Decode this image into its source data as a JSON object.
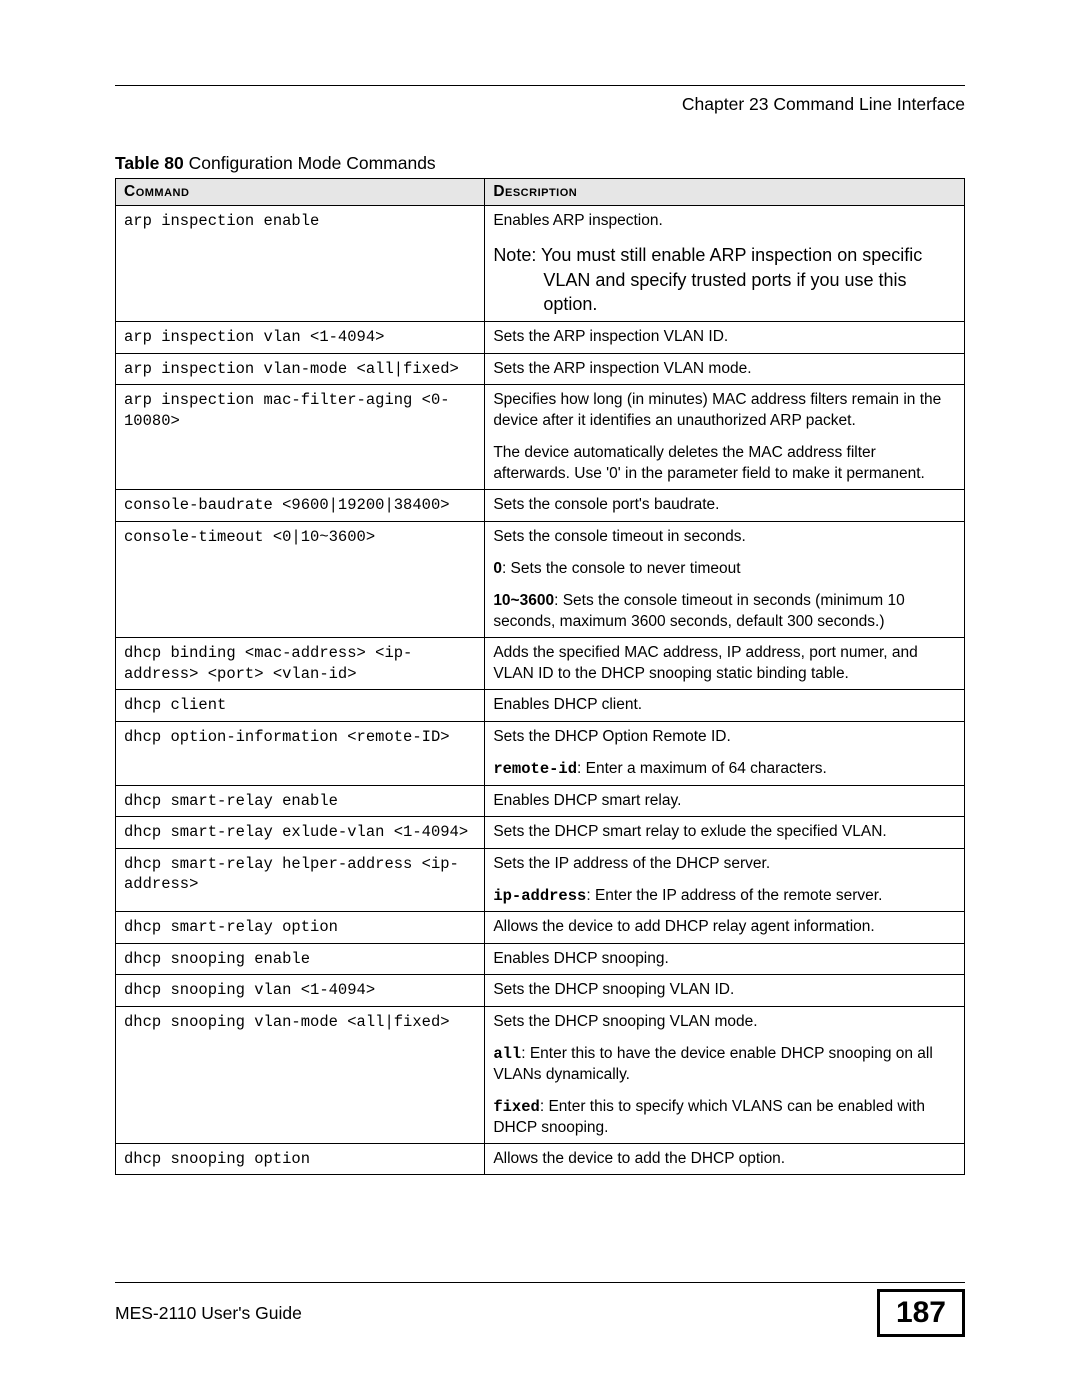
{
  "chapter_line": "Chapter 23 Command Line Interface",
  "table_caption_bold": "Table 80",
  "table_caption_rest": "   Configuration Mode Commands",
  "headers": {
    "command": "Command",
    "description": "Description"
  },
  "rows": [
    {
      "cmd": "arp inspection enable",
      "desc": [
        {
          "text": "Enables ARP inspection."
        },
        {
          "note": true,
          "text": "Note: You must still enable ARP inspection on specific VLAN and specify trusted ports if you use this option."
        }
      ]
    },
    {
      "cmd": "arp inspection vlan <1-4094>",
      "desc": [
        {
          "text": "Sets the ARP inspection VLAN ID."
        }
      ]
    },
    {
      "cmd": "arp inspection vlan-mode <all|fixed>",
      "desc": [
        {
          "text": "Sets the ARP inspection VLAN mode."
        }
      ]
    },
    {
      "cmd": "arp inspection mac-filter-aging <0-10080>",
      "desc": [
        {
          "text": "Specifies how long (in minutes) MAC address filters remain in the device after it identifies an unauthorized ARP packet."
        },
        {
          "text": "The device automatically deletes the MAC address filter afterwards. Use '0' in the parameter field to make it permanent."
        }
      ]
    },
    {
      "cmd": "console-baudrate <9600|19200|38400>",
      "desc": [
        {
          "text": "Sets the console port's baudrate."
        }
      ]
    },
    {
      "cmd": "console-timeout <0|10~3600>",
      "desc": [
        {
          "text": "Sets the console timeout in seconds."
        },
        {
          "bold_lead": "0",
          "text": ": Sets the console to never timeout"
        },
        {
          "bold_lead": "10~3600",
          "text": ": Sets the console timeout in seconds (minimum 10 seconds, maximum 3600 seconds, default 300 seconds.)"
        }
      ]
    },
    {
      "cmd": "dhcp binding <mac-address> <ip-address> <port> <vlan-id>",
      "desc": [
        {
          "text": "Adds the specified MAC address, IP address, port numer, and VLAN ID to the DHCP snooping static binding table."
        }
      ]
    },
    {
      "cmd": "dhcp client",
      "desc": [
        {
          "text": "Enables DHCP client."
        }
      ]
    },
    {
      "cmd": "dhcp option-information <remote-ID>",
      "desc": [
        {
          "text": "Sets the DHCP Option Remote ID."
        },
        {
          "bold_lead_mono": "remote-id",
          "text": ": Enter a maximum of 64 characters."
        }
      ]
    },
    {
      "cmd": "dhcp smart-relay enable",
      "desc": [
        {
          "text": "Enables DHCP smart relay."
        }
      ]
    },
    {
      "cmd": "dhcp smart-relay exlude-vlan <1-4094>",
      "desc": [
        {
          "text": "Sets the DHCP smart relay to exlude the specified VLAN."
        }
      ]
    },
    {
      "cmd": "dhcp smart-relay helper-address <ip-address>",
      "desc": [
        {
          "text": "Sets the IP address of the DHCP server."
        },
        {
          "bold_lead_mono": "ip-address",
          "text": ": Enter the IP address of the remote server."
        }
      ]
    },
    {
      "cmd": "dhcp smart-relay option",
      "desc": [
        {
          "text": "Allows the device to add DHCP relay agent information."
        }
      ]
    },
    {
      "cmd": "dhcp snooping enable",
      "desc": [
        {
          "text": "Enables DHCP snooping."
        }
      ]
    },
    {
      "cmd": "dhcp snooping vlan <1-4094>",
      "desc": [
        {
          "text": "Sets the DHCP snooping VLAN ID."
        }
      ]
    },
    {
      "cmd": "dhcp snooping vlan-mode <all|fixed>",
      "desc": [
        {
          "text": "Sets the DHCP snooping VLAN mode."
        },
        {
          "bold_lead_mono": "all",
          "text": ": Enter this to have the device enable DHCP snooping on all VLANs dynamically."
        },
        {
          "bold_lead_mono": "fixed",
          "text": ": Enter this to specify which VLANS can be enabled with DHCP snooping."
        }
      ]
    },
    {
      "cmd": "dhcp snooping option",
      "desc": [
        {
          "text": "Allows the device to add the DHCP option."
        }
      ]
    }
  ],
  "footer_left": "MES-2110 User's Guide",
  "page_number": "187",
  "col_widths": {
    "command": "43.5%",
    "description": "56.5%"
  }
}
